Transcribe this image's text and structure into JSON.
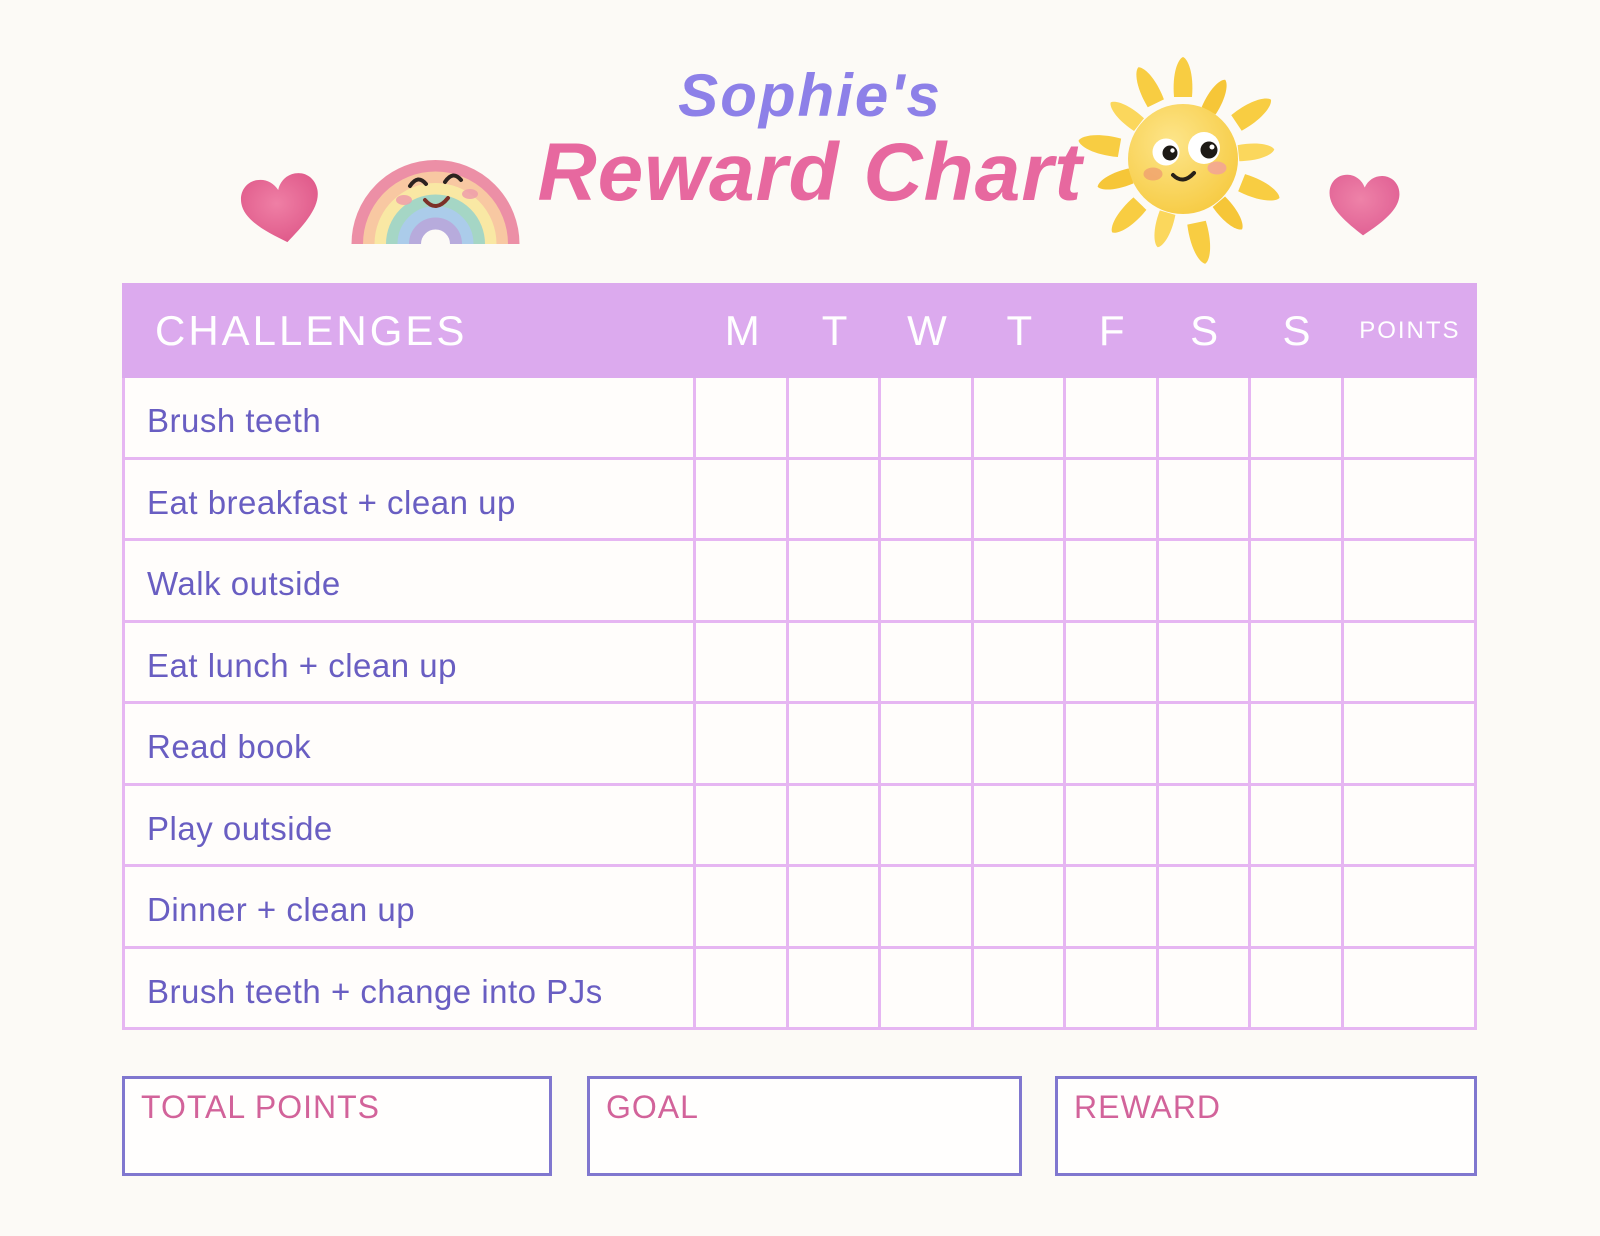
{
  "title": {
    "name_line": "Sophie's",
    "chart_line": "Reward Chart"
  },
  "table": {
    "header": {
      "challenges_label": "CHALLENGES",
      "day_labels": [
        "M",
        "T",
        "W",
        "T",
        "F",
        "S",
        "S"
      ],
      "points_label": "POINTS"
    },
    "rows": [
      {
        "label": "Brush teeth"
      },
      {
        "label": "Eat breakfast + clean up"
      },
      {
        "label": "Walk outside"
      },
      {
        "label": "Eat lunch + clean up"
      },
      {
        "label": "Read book"
      },
      {
        "label": "Play outside"
      },
      {
        "label": "Dinner + clean up"
      },
      {
        "label": "Brush teeth + change into PJs"
      }
    ]
  },
  "footer": {
    "total_points_label": "TOTAL POINTS",
    "goal_label": "GOAL",
    "reward_label": "REWARD"
  },
  "decorations": {
    "left_icon": "heart-icon",
    "header_left_icon": "rainbow-icon",
    "header_right_icon": "sun-icon",
    "right_icon": "heart-icon"
  },
  "colors": {
    "header_bar": "#dcaaee",
    "grid_line": "#e6b6f2",
    "header_text": "#ffffff",
    "task_text": "#695ec2",
    "title_name": "#8d80e8",
    "title_main": "#e7689f",
    "footer_label": "#d2639a",
    "footer_border": "#8077cf",
    "heart_pink": "#e2618f",
    "sun_yellow": "#f8cf47"
  }
}
